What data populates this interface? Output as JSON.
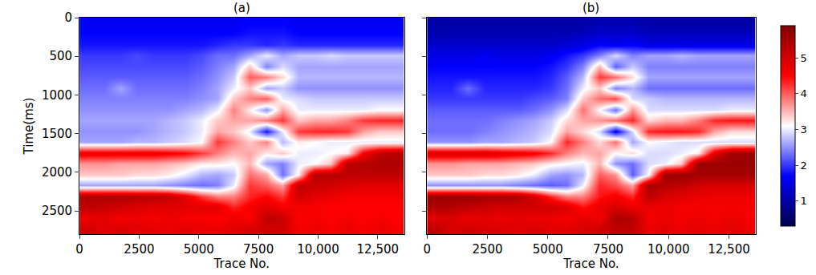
{
  "chart_data": [
    {
      "type": "heatmap",
      "title": "(a)",
      "xlabel": "Trace No.",
      "ylabel": "Time(ms)",
      "xlim": [
        0,
        13600
      ],
      "ylim": [
        2800,
        0
      ],
      "xticks": [
        0,
        2500,
        5000,
        7500,
        {
          "value": 10000,
          "label": "10,000"
        },
        {
          "value": 12500,
          "label": "12,500"
        }
      ],
      "yticks": [
        0,
        500,
        1000,
        1500,
        2000,
        2500
      ],
      "x": [
        340,
        1020,
        1700,
        2380,
        3060,
        3740,
        4420,
        5100,
        5780,
        6460,
        7140,
        7820,
        8500,
        9180,
        9860,
        10540,
        11220,
        11900,
        12580,
        13260
      ],
      "y": [
        70,
        210,
        350,
        490,
        630,
        770,
        910,
        1050,
        1190,
        1330,
        1470,
        1610,
        1750,
        1890,
        2030,
        2170,
        2310,
        2450,
        2590,
        2730
      ],
      "z": [
        [
          1.6,
          1.6,
          1.6,
          1.6,
          1.6,
          1.6,
          1.6,
          1.6,
          1.6,
          1.6,
          1.7,
          1.7,
          1.7,
          1.6,
          1.6,
          1.6,
          1.6,
          1.6,
          1.6,
          1.6
        ],
        [
          1.7,
          1.7,
          1.7,
          1.7,
          1.7,
          1.7,
          1.7,
          1.7,
          1.7,
          1.7,
          1.8,
          1.8,
          1.8,
          1.7,
          1.7,
          1.7,
          1.7,
          1.7,
          1.7,
          1.7
        ],
        [
          1.8,
          1.8,
          1.8,
          1.8,
          1.8,
          1.8,
          1.8,
          1.8,
          1.9,
          2.0,
          2.0,
          1.9,
          2.0,
          1.9,
          1.9,
          1.9,
          1.9,
          1.9,
          1.9,
          1.9
        ],
        [
          2.0,
          2.0,
          2.0,
          2.1,
          2.0,
          2.0,
          2.0,
          2.1,
          2.3,
          2.3,
          2.6,
          3.0,
          2.6,
          2.8,
          2.8,
          2.9,
          2.8,
          2.8,
          2.8,
          2.8
        ],
        [
          2.1,
          2.1,
          2.1,
          2.1,
          2.1,
          2.1,
          2.1,
          2.2,
          2.4,
          2.6,
          3.4,
          2.4,
          2.9,
          2.6,
          2.6,
          2.6,
          2.6,
          2.6,
          2.6,
          2.6
        ],
        [
          2.2,
          2.2,
          2.2,
          2.2,
          2.2,
          2.2,
          2.2,
          2.3,
          2.5,
          2.8,
          4.0,
          3.8,
          3.3,
          2.7,
          2.7,
          2.7,
          2.7,
          2.7,
          2.7,
          2.7
        ],
        [
          2.3,
          2.3,
          2.6,
          2.3,
          2.3,
          2.3,
          2.3,
          2.4,
          2.6,
          3.0,
          3.4,
          2.6,
          2.8,
          2.5,
          2.5,
          2.5,
          2.5,
          2.5,
          2.5,
          2.5
        ],
        [
          2.4,
          2.4,
          2.4,
          2.4,
          2.4,
          2.4,
          2.4,
          2.5,
          2.6,
          3.4,
          3.8,
          4.0,
          3.0,
          2.9,
          2.8,
          2.8,
          2.8,
          2.8,
          2.8,
          2.8
        ],
        [
          2.5,
          2.5,
          2.5,
          2.5,
          2.5,
          2.5,
          2.6,
          2.7,
          3.0,
          3.8,
          3.2,
          2.5,
          3.6,
          3.0,
          3.0,
          3.0,
          3.0,
          3.0,
          3.1,
          3.1
        ],
        [
          2.6,
          2.6,
          2.6,
          2.6,
          2.6,
          2.7,
          2.8,
          3.0,
          3.4,
          3.6,
          3.6,
          3.8,
          4.2,
          3.4,
          3.6,
          3.6,
          3.8,
          4.2,
          4.3,
          4.3
        ],
        [
          2.5,
          2.5,
          2.5,
          2.5,
          2.6,
          2.7,
          2.8,
          3.0,
          3.6,
          3.4,
          3.0,
          1.8,
          3.0,
          4.2,
          4.3,
          4.3,
          4.2,
          3.6,
          3.4,
          3.4
        ],
        [
          2.6,
          2.6,
          2.6,
          2.7,
          2.7,
          2.8,
          2.9,
          3.1,
          4.2,
          3.8,
          3.4,
          3.8,
          2.7,
          3.2,
          3.1,
          3.0,
          3.0,
          3.0,
          3.0,
          3.0
        ],
        [
          4.7,
          4.7,
          4.7,
          4.7,
          4.7,
          4.6,
          4.5,
          4.2,
          3.8,
          3.5,
          3.6,
          3.2,
          3.4,
          3.0,
          3.0,
          3.1,
          3.2,
          4.6,
          5.2,
          5.3
        ],
        [
          3.7,
          3.7,
          3.6,
          3.6,
          3.6,
          3.5,
          3.4,
          3.2,
          3.2,
          3.1,
          3.5,
          2.6,
          2.4,
          3.0,
          3.1,
          3.4,
          5.3,
          5.3,
          5.4,
          5.4
        ],
        [
          3.4,
          3.4,
          3.4,
          3.3,
          3.3,
          3.2,
          3.0,
          2.7,
          2.6,
          2.8,
          3.9,
          3.6,
          2.3,
          3.2,
          5.3,
          5.3,
          5.2,
          5.2,
          5.2,
          5.2
        ],
        [
          2.6,
          2.6,
          2.6,
          2.6,
          2.6,
          2.5,
          2.4,
          2.3,
          2.4,
          3.0,
          4.2,
          4.0,
          3.6,
          5.2,
          5.1,
          5.0,
          4.9,
          4.8,
          4.8,
          4.8
        ],
        [
          5.4,
          5.4,
          5.4,
          5.3,
          5.3,
          5.2,
          4.8,
          4.2,
          3.8,
          3.8,
          4.3,
          4.5,
          4.2,
          5.0,
          4.8,
          4.7,
          4.6,
          4.6,
          4.6,
          4.6
        ],
        [
          5.2,
          5.1,
          5.0,
          4.9,
          4.8,
          4.8,
          4.8,
          4.8,
          4.8,
          4.3,
          4.6,
          4.8,
          4.6,
          4.6,
          4.6,
          4.5,
          4.5,
          4.5,
          4.5,
          4.5
        ],
        [
          4.7,
          4.8,
          4.6,
          4.7,
          4.6,
          4.7,
          4.6,
          4.6,
          4.5,
          4.7,
          4.5,
          5.2,
          5.1,
          4.5,
          4.6,
          4.5,
          4.6,
          4.5,
          4.6,
          4.5
        ],
        [
          5.0,
          4.8,
          4.9,
          4.8,
          4.8,
          4.7,
          4.8,
          4.7,
          4.7,
          4.8,
          4.9,
          5.0,
          5.0,
          4.6,
          4.7,
          4.6,
          4.7,
          4.6,
          4.7,
          4.6
        ]
      ]
    },
    {
      "type": "heatmap",
      "title": "(b)",
      "xlabel": "Trace No.",
      "tick_labels": "x",
      "xlim": [
        0,
        13600
      ],
      "ylim": [
        2800,
        0
      ],
      "xticks": [
        0,
        2500,
        5000,
        7500,
        {
          "value": 10000,
          "label": "10,000"
        },
        {
          "value": 12500,
          "label": "12,500"
        }
      ],
      "yticks": [
        0,
        500,
        1000,
        1500,
        2000,
        2500
      ],
      "x": [
        340,
        1020,
        1700,
        2380,
        3060,
        3740,
        4420,
        5100,
        5780,
        6460,
        7140,
        7820,
        8500,
        9180,
        9860,
        10540,
        11220,
        11900,
        12580,
        13260
      ],
      "y": [
        70,
        210,
        350,
        490,
        630,
        770,
        910,
        1050,
        1190,
        1330,
        1470,
        1610,
        1750,
        1890,
        2030,
        2170,
        2310,
        2450,
        2590,
        2730
      ],
      "z": [
        [
          1.0,
          1.0,
          1.0,
          1.0,
          1.0,
          1.0,
          1.0,
          1.0,
          1.0,
          1.0,
          1.1,
          1.1,
          1.1,
          1.0,
          1.0,
          1.0,
          1.0,
          1.0,
          1.0,
          1.0
        ],
        [
          1.1,
          1.1,
          1.1,
          1.1,
          1.1,
          1.1,
          1.1,
          1.1,
          1.1,
          1.2,
          1.3,
          1.3,
          1.3,
          1.2,
          1.2,
          1.2,
          1.2,
          1.2,
          1.2,
          1.2
        ],
        [
          1.3,
          1.3,
          1.3,
          1.3,
          1.3,
          1.3,
          1.3,
          1.3,
          1.4,
          1.5,
          1.7,
          1.6,
          1.7,
          1.5,
          1.5,
          1.5,
          1.5,
          1.5,
          1.5,
          1.5
        ],
        [
          1.5,
          1.5,
          1.5,
          1.6,
          1.5,
          1.5,
          1.5,
          1.6,
          1.8,
          2.0,
          2.4,
          2.9,
          2.4,
          2.6,
          2.6,
          2.7,
          2.6,
          2.6,
          2.6,
          2.6
        ],
        [
          1.7,
          1.7,
          1.7,
          1.7,
          1.7,
          1.7,
          1.7,
          1.8,
          2.0,
          2.4,
          3.5,
          2.2,
          2.8,
          2.4,
          2.4,
          2.4,
          2.4,
          2.4,
          2.4,
          2.4
        ],
        [
          1.8,
          1.8,
          1.8,
          1.8,
          1.8,
          1.8,
          1.8,
          1.9,
          2.2,
          2.7,
          4.2,
          3.9,
          3.3,
          2.6,
          2.6,
          2.6,
          2.6,
          2.6,
          2.6,
          2.6
        ],
        [
          1.9,
          1.9,
          2.3,
          1.9,
          1.9,
          1.9,
          1.9,
          2.0,
          2.3,
          3.0,
          3.4,
          2.4,
          2.7,
          2.3,
          2.3,
          2.3,
          2.3,
          2.3,
          2.3,
          2.3
        ],
        [
          2.0,
          2.0,
          2.0,
          2.0,
          2.0,
          2.0,
          2.1,
          2.2,
          2.4,
          3.4,
          3.9,
          4.1,
          2.9,
          2.8,
          2.7,
          2.7,
          2.7,
          2.7,
          2.7,
          2.7
        ],
        [
          2.2,
          2.2,
          2.2,
          2.2,
          2.2,
          2.2,
          2.3,
          2.5,
          2.9,
          3.9,
          3.1,
          2.3,
          3.7,
          2.9,
          2.9,
          2.9,
          2.9,
          2.9,
          3.0,
          3.0
        ],
        [
          2.3,
          2.3,
          2.3,
          2.3,
          2.4,
          2.5,
          2.6,
          2.8,
          3.3,
          3.6,
          3.7,
          3.9,
          4.3,
          3.3,
          3.5,
          3.5,
          3.8,
          4.3,
          4.4,
          4.4
        ],
        [
          2.3,
          2.3,
          2.3,
          2.4,
          2.5,
          2.6,
          2.7,
          2.9,
          3.6,
          3.3,
          2.9,
          1.6,
          2.9,
          4.3,
          4.4,
          4.4,
          4.3,
          3.6,
          3.3,
          3.3
        ],
        [
          2.5,
          2.5,
          2.5,
          2.6,
          2.6,
          2.7,
          2.8,
          3.1,
          4.3,
          3.8,
          3.3,
          3.9,
          2.6,
          3.1,
          3.0,
          2.9,
          2.9,
          2.9,
          2.9,
          2.9
        ],
        [
          4.9,
          4.9,
          4.9,
          4.9,
          4.8,
          4.7,
          4.6,
          4.3,
          3.8,
          3.5,
          3.6,
          3.1,
          3.3,
          2.9,
          2.9,
          3.0,
          3.2,
          4.8,
          5.5,
          5.6
        ],
        [
          3.7,
          3.7,
          3.6,
          3.6,
          3.6,
          3.5,
          3.4,
          3.2,
          3.1,
          3.0,
          3.5,
          2.5,
          2.3,
          2.9,
          3.0,
          3.4,
          5.6,
          5.6,
          5.6,
          5.6
        ],
        [
          3.4,
          3.4,
          3.4,
          3.3,
          3.3,
          3.2,
          3.0,
          2.6,
          2.5,
          2.7,
          4.0,
          3.7,
          2.2,
          3.1,
          5.6,
          5.6,
          5.5,
          5.5,
          5.5,
          5.5
        ],
        [
          2.5,
          2.5,
          2.5,
          2.5,
          2.5,
          2.4,
          2.3,
          2.2,
          2.3,
          3.0,
          4.3,
          4.1,
          3.6,
          5.5,
          5.3,
          5.2,
          5.0,
          4.9,
          4.9,
          4.9
        ],
        [
          5.6,
          5.6,
          5.6,
          5.5,
          5.5,
          5.4,
          5.0,
          4.3,
          3.8,
          3.8,
          4.4,
          4.6,
          4.3,
          5.2,
          4.9,
          4.8,
          4.7,
          4.7,
          4.7,
          4.7
        ],
        [
          5.4,
          5.3,
          5.2,
          5.1,
          5.0,
          5.0,
          5.0,
          5.0,
          4.9,
          4.4,
          4.7,
          4.9,
          4.7,
          4.7,
          4.7,
          4.6,
          4.6,
          4.6,
          4.6,
          4.6
        ],
        [
          4.8,
          4.9,
          4.7,
          4.8,
          4.7,
          4.8,
          4.7,
          4.7,
          4.6,
          4.8,
          4.6,
          5.4,
          5.3,
          4.6,
          4.7,
          4.6,
          4.7,
          4.6,
          4.7,
          4.6
        ],
        [
          5.2,
          4.9,
          5.0,
          4.9,
          4.9,
          4.8,
          4.9,
          4.8,
          4.8,
          4.9,
          5.0,
          5.2,
          5.2,
          4.7,
          4.8,
          4.7,
          4.8,
          4.7,
          4.8,
          4.7
        ]
      ],
      "colorbar": {
        "range": [
          0.3,
          5.9
        ],
        "ticks": [
          1,
          2,
          3,
          4,
          5
        ]
      }
    }
  ]
}
